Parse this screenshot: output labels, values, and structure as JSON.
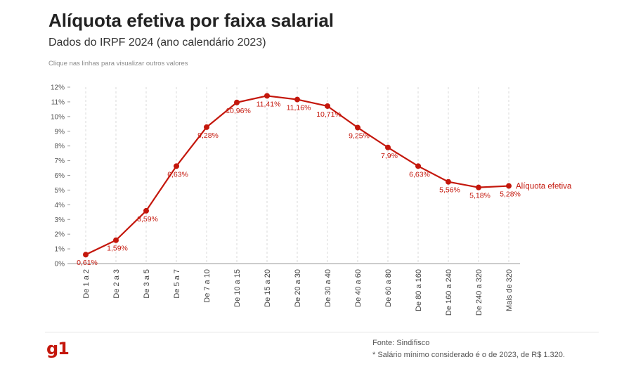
{
  "header": {
    "title": "Alíquota efetiva por faixa salarial",
    "subtitle": "Dados do IRPF 2024 (ano calendário 2023)",
    "hint": "Clique nas linhas para visualizar outros valores"
  },
  "footer": {
    "logo": "g1",
    "source": "Fonte: Sindifisco",
    "note": "* Salário mínimo considerado é o de 2023, de R$ 1.320."
  },
  "colors": {
    "line": "#c4170c",
    "label": "#c4170c",
    "grid": "#d9d9d9",
    "axis": "#999999"
  },
  "chart_data": {
    "type": "line",
    "title": "Alíquota efetiva por faixa salarial",
    "subtitle": "Dados do IRPF 2024 (ano calendário 2023)",
    "xlabel": "",
    "ylabel": "",
    "ylim": [
      0,
      12
    ],
    "y_ticks": [
      "0%",
      "1%",
      "2%",
      "3%",
      "4%",
      "5%",
      "6%",
      "7%",
      "8%",
      "9%",
      "10%",
      "11%",
      "12%"
    ],
    "grid": "vertical",
    "categories": [
      "De 1 a 2",
      "De 2 a 3",
      "De 3 a 5",
      "De 5 a 7",
      "De 7 a 10",
      "De 10 a 15",
      "De 15 a 20",
      "De 20 a 30",
      "De 30 a 40",
      "De 40 a 60",
      "De 60 a 80",
      "De 80 a 160",
      "De 160 a 240",
      "De 240 a 320",
      "Mais de 320"
    ],
    "series": [
      {
        "name": "Alíquota efetiva",
        "values": [
          0.61,
          1.59,
          3.59,
          6.63,
          9.28,
          10.96,
          11.41,
          11.16,
          10.71,
          9.25,
          7.9,
          6.63,
          5.56,
          5.18,
          5.28
        ],
        "labels": [
          "0,61%",
          "1,59%",
          "3,59%",
          "6,63%",
          "9,28%",
          "10,96%",
          "11,41%",
          "11,16%",
          "10,71%",
          "9,25%",
          "7,9%",
          "6,63%",
          "5,56%",
          "5,18%",
          "5,28%"
        ]
      }
    ]
  }
}
